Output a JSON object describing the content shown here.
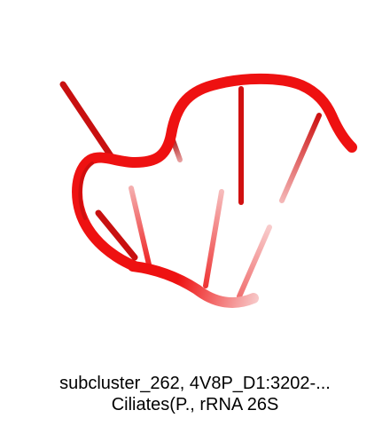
{
  "caption": {
    "line1": "subcluster_262, 4V8P_D1:3202-...",
    "line2": "Ciliates(P., rRNA 26S"
  },
  "structure": {
    "backbone_color": "#ee1111",
    "fade_color": "#ffffff"
  }
}
